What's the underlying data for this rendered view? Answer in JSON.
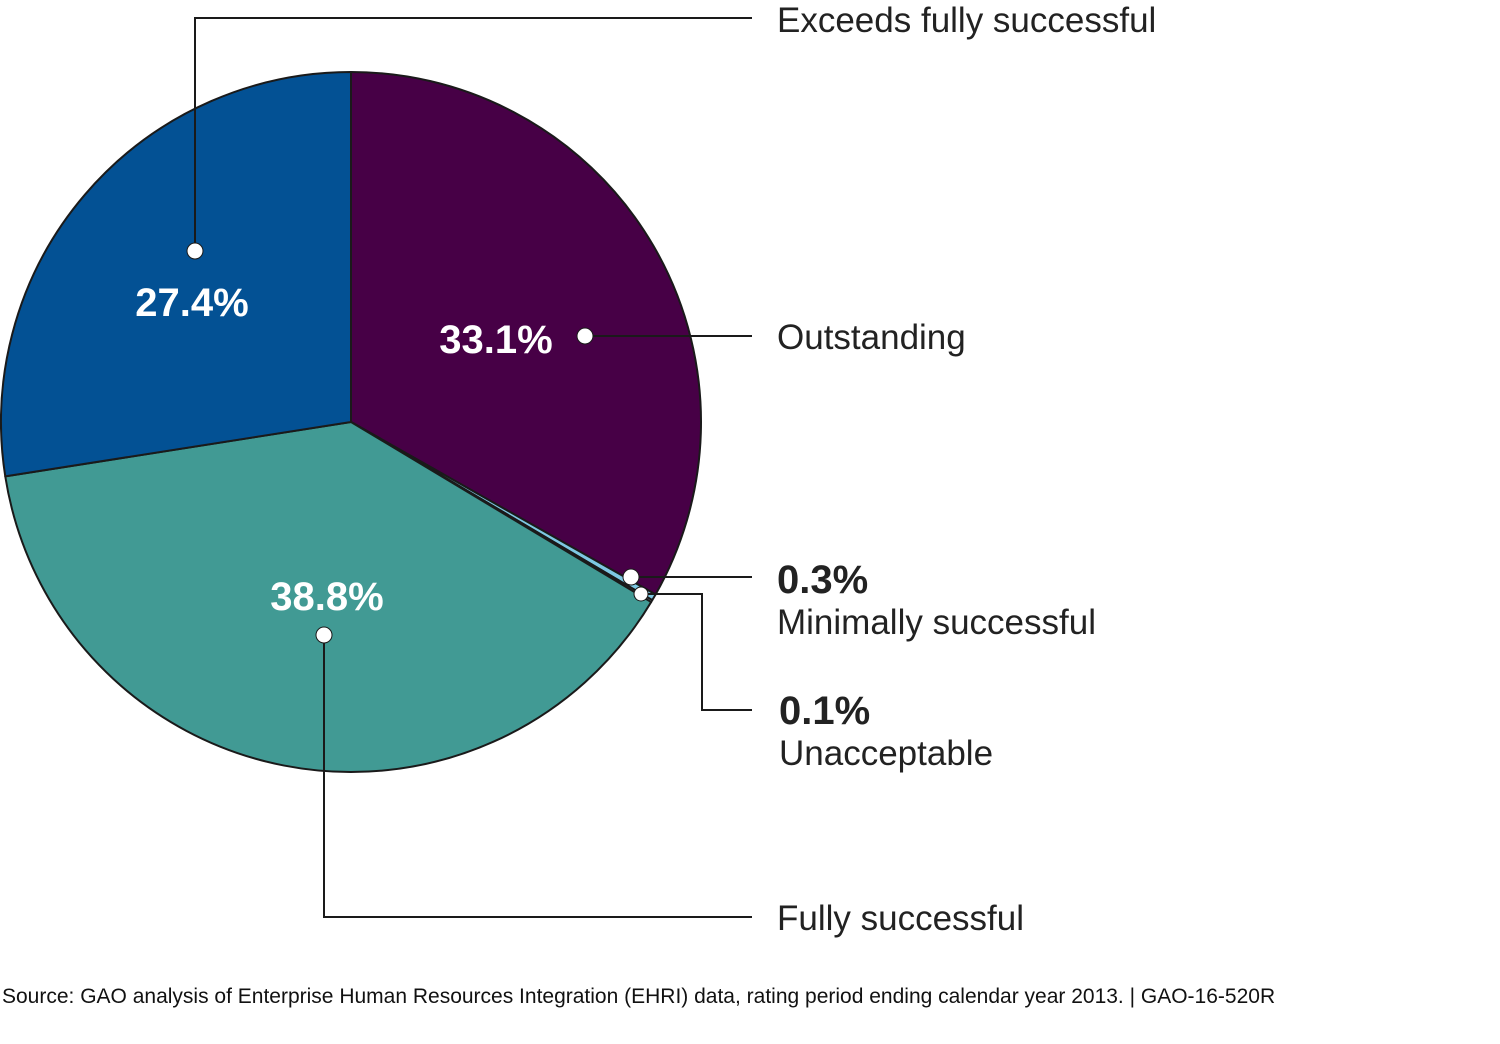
{
  "chart_data": {
    "type": "pie",
    "title": "",
    "slices": [
      {
        "label": "Outstanding",
        "value": 33.1,
        "display": "33.1%",
        "color": "#470046"
      },
      {
        "label": "Minimally successful",
        "value": 0.3,
        "display": "0.3%",
        "color": "#7ec8e3"
      },
      {
        "label": "Unacceptable",
        "value": 0.1,
        "display": "0.1%",
        "color": "#c9d8e0"
      },
      {
        "label": "Fully successful",
        "value": 38.8,
        "display": "38.8%",
        "color": "#419a94"
      },
      {
        "label": "Exceeds fully successful",
        "value": 27.4,
        "display": "27.4%",
        "color": "#035194"
      }
    ]
  },
  "source": {
    "text": "Source: GAO analysis of Enterprise Human Resources Integration (EHRI) data, rating period ending calendar year 2013. | GAO-16-520R"
  }
}
